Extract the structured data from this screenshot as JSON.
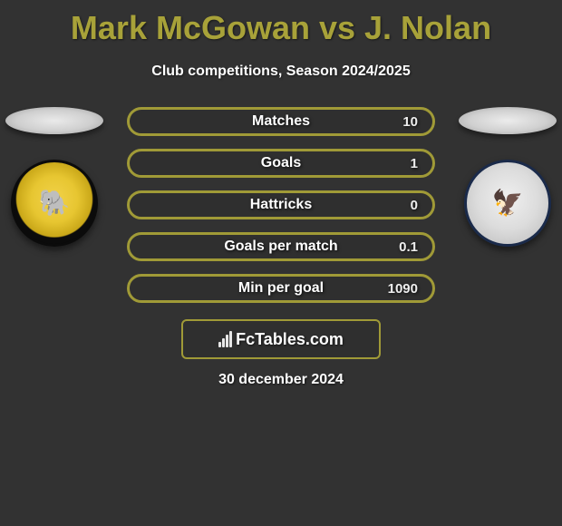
{
  "header": {
    "title": "Mark McGowan vs J. Nolan",
    "subtitle": "Club competitions, Season 2024/2025",
    "title_color": "#a8a239"
  },
  "stats": [
    {
      "label": "Matches",
      "right_value": "10"
    },
    {
      "label": "Goals",
      "right_value": "1"
    },
    {
      "label": "Hattricks",
      "right_value": "0"
    },
    {
      "label": "Goals per match",
      "right_value": "0.1"
    },
    {
      "label": "Min per goal",
      "right_value": "1090"
    }
  ],
  "style": {
    "pill_border_color": "#a09a37",
    "background_color": "#323232",
    "text_color": "#ffffff"
  },
  "badges": {
    "left": {
      "club_hint": "DUMBARTON F.C.",
      "emoji": "🐘",
      "crest_bg_outer": "#0b0b0b",
      "crest_bg_inner": "#e7c631"
    },
    "right": {
      "club_hint": "Inverness CT",
      "emoji": "🦅",
      "crest_border": "#1a2a4a"
    }
  },
  "branding": {
    "site_name": "FcTables.com"
  },
  "footer": {
    "date": "30 december 2024"
  }
}
